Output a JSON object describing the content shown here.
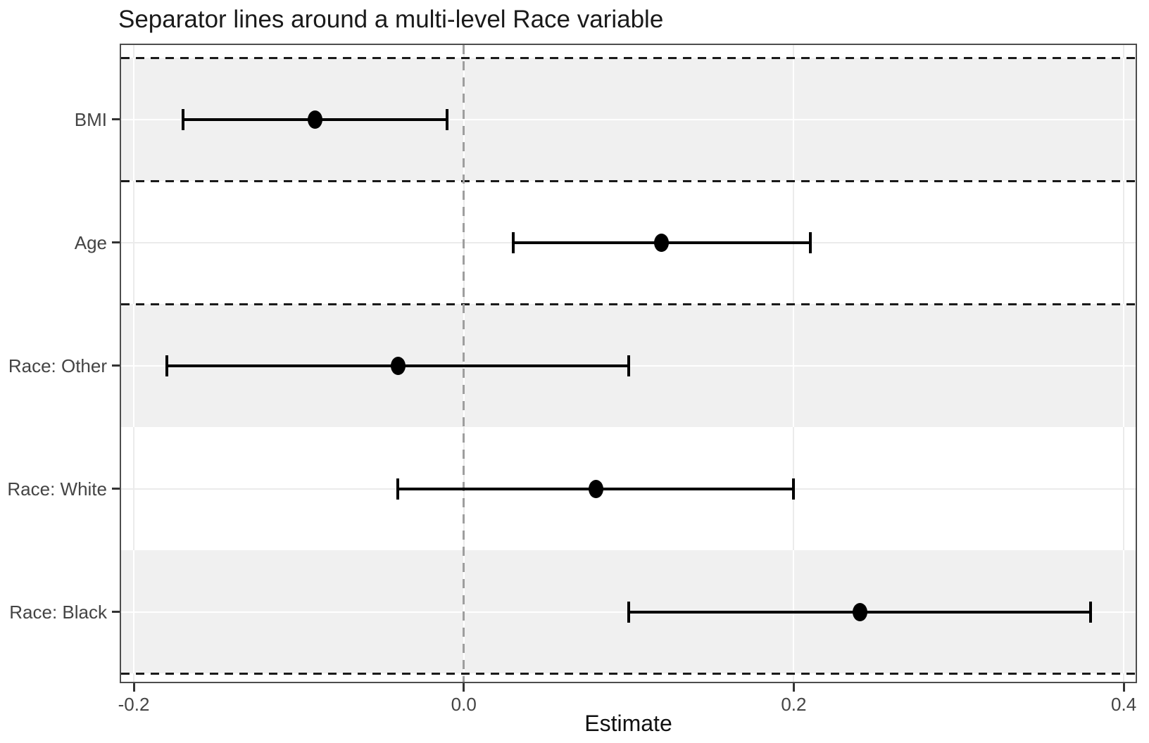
{
  "title": "Separator lines around a multi-level Race variable",
  "chart_data": {
    "type": "scatter",
    "subtype": "forest-plot-with-error-bars",
    "title": "Separator lines around a multi-level Race variable",
    "xlabel": "Estimate",
    "ylabel": "",
    "xlim": [
      -0.2077,
      0.4072
    ],
    "xtick_values": [
      -0.2,
      0.0,
      0.2,
      0.4
    ],
    "xtick_labels": [
      "-0.2",
      "0.0",
      "0.2",
      "0.4"
    ],
    "zero_line_x": 0.0,
    "grid": "major-x-gridlines-and-row-center-gridlines",
    "legend_position": "none",
    "rows": [
      {
        "label": "BMI",
        "estimate": -0.09,
        "ci_low": -0.17,
        "ci_high": -0.01,
        "shaded": true
      },
      {
        "label": "Age",
        "estimate": 0.12,
        "ci_low": 0.03,
        "ci_high": 0.21,
        "shaded": false
      },
      {
        "label": "Race: Other",
        "estimate": -0.04,
        "ci_low": -0.18,
        "ci_high": 0.1,
        "shaded": true
      },
      {
        "label": "Race: White",
        "estimate": 0.08,
        "ci_low": -0.04,
        "ci_high": 0.2,
        "shaded": false
      },
      {
        "label": "Race: Black",
        "estimate": 0.24,
        "ci_low": 0.1,
        "ci_high": 0.38,
        "shaded": true
      }
    ],
    "separator_row_boundaries": [
      0,
      1,
      2,
      5
    ],
    "colors": {
      "stripe_gray": "#F0F0F0",
      "grid_on_gray": "#FFFFFF",
      "grid_on_white": "#EBEBEB",
      "separator_line": "#1A1A1A",
      "zero_line": "#9E9E9E",
      "panel_border": "#4D4D4D",
      "axis_text": "#444444",
      "marker": "#000000"
    }
  }
}
